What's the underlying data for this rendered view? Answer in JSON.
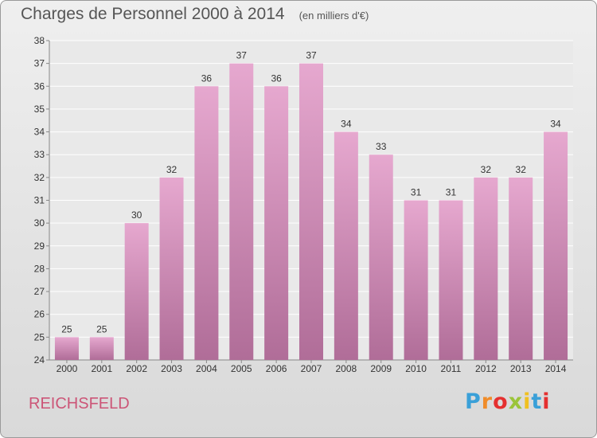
{
  "title": "Charges de Personnel 2000 à 2014",
  "subtitle": "(en milliers d'€)",
  "commune": "REICHSFELD",
  "logo": {
    "text": "Proxiti",
    "colors": [
      "#3aa0d8",
      "#f08c2a",
      "#e53030",
      "#9bc43a",
      "#f0c020",
      "#3aa0d8",
      "#e53030"
    ]
  },
  "colors": {
    "bar_top": "#e6a8cf",
    "bar_bottom": "#b06d98",
    "title": "#555555",
    "commune": "#cc5577"
  },
  "chart_data": {
    "type": "bar",
    "title": "Charges de Personnel 2000 à 2014",
    "subtitle": "(en milliers d'€)",
    "categories": [
      "2000",
      "2001",
      "2002",
      "2003",
      "2004",
      "2005",
      "2006",
      "2007",
      "2008",
      "2009",
      "2010",
      "2011",
      "2012",
      "2013",
      "2014"
    ],
    "values": [
      25,
      25,
      30,
      32,
      36,
      37,
      36,
      37,
      34,
      33,
      31,
      31,
      32,
      32,
      34
    ],
    "ylim": [
      24,
      38
    ],
    "yticks": [
      24,
      25,
      26,
      27,
      28,
      29,
      30,
      31,
      32,
      33,
      34,
      35,
      36,
      37,
      38
    ],
    "grid": true,
    "data_labels": true
  }
}
